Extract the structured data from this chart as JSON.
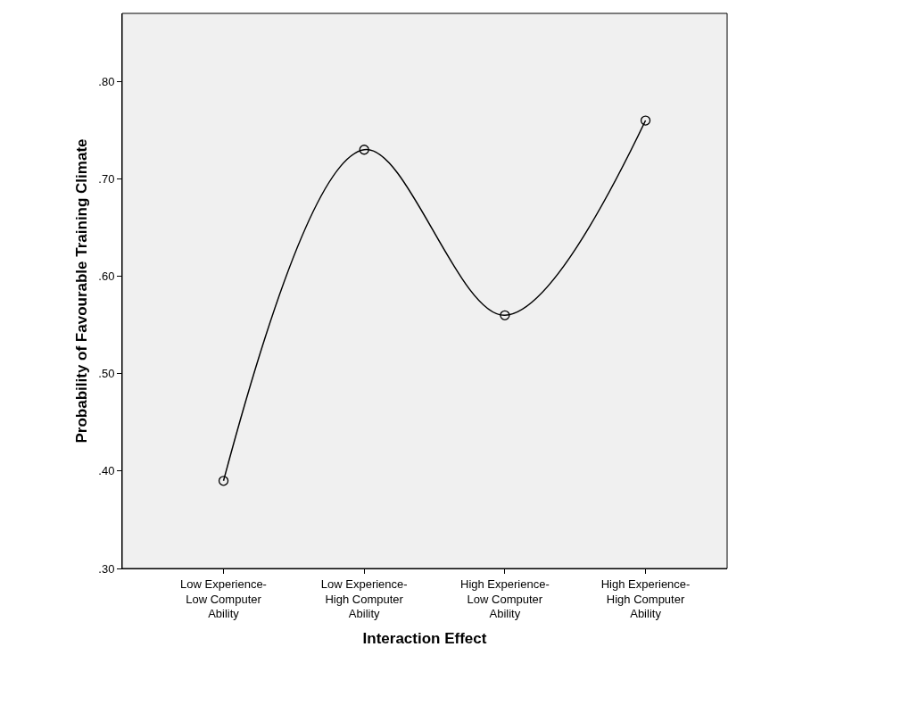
{
  "chart_data": {
    "type": "line",
    "xlabel": "Interaction Effect",
    "ylabel": "Probability of Favourable Training Climate",
    "categories": [
      "Low Experience-\nLow Computer\nAbility",
      "Low Experience-\nHigh Computer\nAbility",
      "High Experience-\nLow Computer\nAbility",
      "High Experience-\nHigh Computer\nAbility"
    ],
    "series": [
      {
        "color": "#000000",
        "values": [
          0.39,
          0.73,
          0.56,
          0.76
        ]
      }
    ],
    "ylim": [
      0.3,
      0.87
    ],
    "yticks": [
      {
        "value": 0.3,
        "label": ".30"
      },
      {
        "value": 0.4,
        "label": ".40"
      },
      {
        "value": 0.5,
        "label": ".50"
      },
      {
        "value": 0.6,
        "label": ".60"
      },
      {
        "value": 0.7,
        "label": ".70"
      },
      {
        "value": 0.8,
        "label": ".80"
      }
    ],
    "marker": "circle",
    "line_style": "solid",
    "grid": false
  }
}
